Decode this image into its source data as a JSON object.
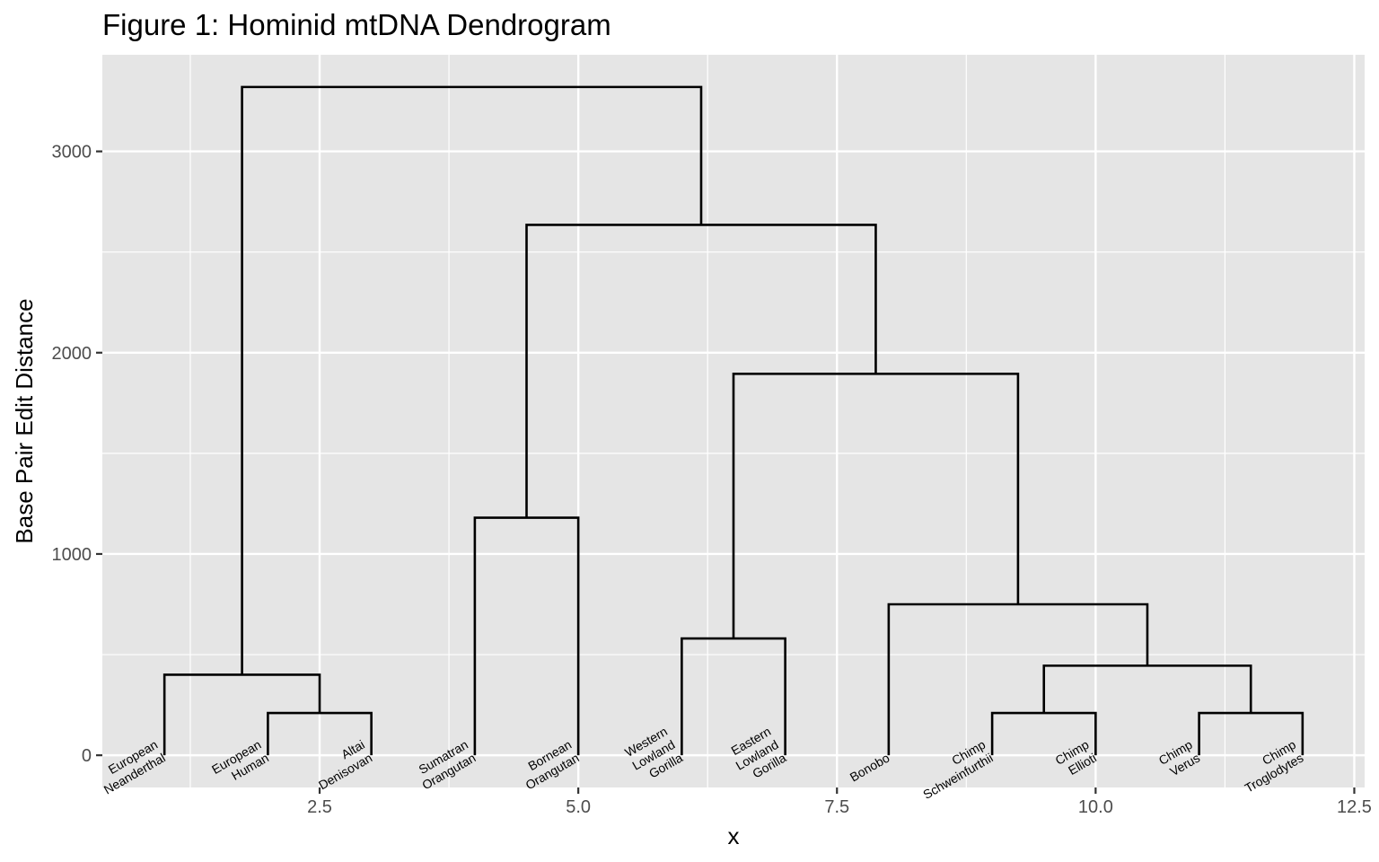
{
  "chart_data": {
    "type": "dendrogram",
    "title": "Figure 1: Hominid mtDNA Dendrogram",
    "xlabel": "x",
    "ylabel": "Base Pair Edit Distance",
    "xlim": [
      0.4,
      12.6
    ],
    "ylim": [
      -160,
      3480
    ],
    "x_ticks": [
      2.5,
      5.0,
      7.5,
      10.0,
      12.5
    ],
    "x_tick_labels": [
      "2.5",
      "5.0",
      "7.5",
      "10.0",
      "12.5"
    ],
    "y_ticks": [
      0,
      1000,
      2000,
      3000
    ],
    "y_tick_labels": [
      "0",
      "1000",
      "2000",
      "3000"
    ],
    "grid": true,
    "leaves": [
      {
        "x": 1,
        "label": [
          "European",
          "Neanderthal"
        ]
      },
      {
        "x": 2,
        "label": [
          "European",
          "Human"
        ]
      },
      {
        "x": 3,
        "label": [
          "Altai",
          "Denisovan"
        ]
      },
      {
        "x": 4,
        "label": [
          "Sumatran",
          "Orangutan"
        ]
      },
      {
        "x": 5,
        "label": [
          "Bornean",
          "Orangutan"
        ]
      },
      {
        "x": 6,
        "label": [
          "Western",
          "Lowland",
          "Gorilla"
        ]
      },
      {
        "x": 7,
        "label": [
          "Eastern",
          "Lowland",
          "Gorilla"
        ]
      },
      {
        "x": 8,
        "label": [
          "Bonobo"
        ]
      },
      {
        "x": 9,
        "label": [
          "Chimp",
          "Schweinfurthii"
        ]
      },
      {
        "x": 10,
        "label": [
          "Chimp",
          "Ellioti"
        ]
      },
      {
        "x": 11,
        "label": [
          "Chimp",
          "Verus"
        ]
      },
      {
        "x": 12,
        "label": [
          "Chimp",
          "Troglodytes"
        ]
      }
    ],
    "merges": [
      {
        "x_left": 2,
        "y_left": 0,
        "x_right": 3,
        "y_right": 0,
        "height": 210
      },
      {
        "x_left": 1,
        "y_left": 0,
        "x_right": 2.5,
        "y_right": 210,
        "height": 400
      },
      {
        "x_left": 4,
        "y_left": 0,
        "x_right": 5,
        "y_right": 0,
        "height": 1180
      },
      {
        "x_left": 6,
        "y_left": 0,
        "x_right": 7,
        "y_right": 0,
        "height": 580
      },
      {
        "x_left": 9,
        "y_left": 0,
        "x_right": 10,
        "y_right": 0,
        "height": 210
      },
      {
        "x_left": 11,
        "y_left": 0,
        "x_right": 12,
        "y_right": 0,
        "height": 210
      },
      {
        "x_left": 9.5,
        "y_left": 210,
        "x_right": 11.5,
        "y_right": 210,
        "height": 445
      },
      {
        "x_left": 8,
        "y_left": 0,
        "x_right": 10.5,
        "y_right": 445,
        "height": 750
      },
      {
        "x_left": 6.5,
        "y_left": 580,
        "x_right": 9.25,
        "y_right": 750,
        "height": 1895
      },
      {
        "x_left": 4.5,
        "y_left": 1180,
        "x_right": 7.875,
        "y_right": 1895,
        "height": 2635
      },
      {
        "x_left": 1.75,
        "y_left": 400,
        "x_right": 6.1875,
        "y_right": 2635,
        "height": 3320
      }
    ]
  }
}
